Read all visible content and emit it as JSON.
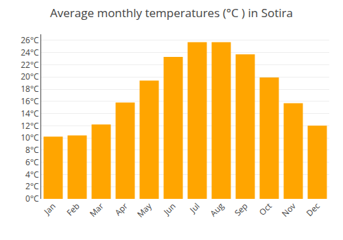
{
  "chart_data": {
    "type": "bar",
    "title": "Average monthly temperatures (°C ) in Sotira",
    "categories": [
      "Jan",
      "Feb",
      "Mar",
      "Apr",
      "May",
      "Jun",
      "Jul",
      "Aug",
      "Sep",
      "Oct",
      "Nov",
      "Dec"
    ],
    "values": [
      10.2,
      10.4,
      12.2,
      15.8,
      19.4,
      23.3,
      25.7,
      25.7,
      23.7,
      19.9,
      15.7,
      12.0
    ],
    "color": "#FFA500",
    "ylim": [
      0,
      27
    ],
    "yticks": [
      {
        "value": 0,
        "label": "0°C"
      },
      {
        "value": 2,
        "label": "2°C"
      },
      {
        "value": 4,
        "label": "4°C"
      },
      {
        "value": 6,
        "label": "6°C"
      },
      {
        "value": 8,
        "label": "8°C"
      },
      {
        "value": 10,
        "label": "10°C"
      },
      {
        "value": 12,
        "label": "12°C"
      },
      {
        "value": 14,
        "label": "14°C"
      },
      {
        "value": 16,
        "label": "16°C"
      },
      {
        "value": 18,
        "label": "18°C"
      },
      {
        "value": 20,
        "label": "20°C"
      },
      {
        "value": 22,
        "label": "22°C"
      },
      {
        "value": 24,
        "label": "24°C"
      },
      {
        "value": 26,
        "label": "26°C"
      }
    ],
    "grid": true
  }
}
